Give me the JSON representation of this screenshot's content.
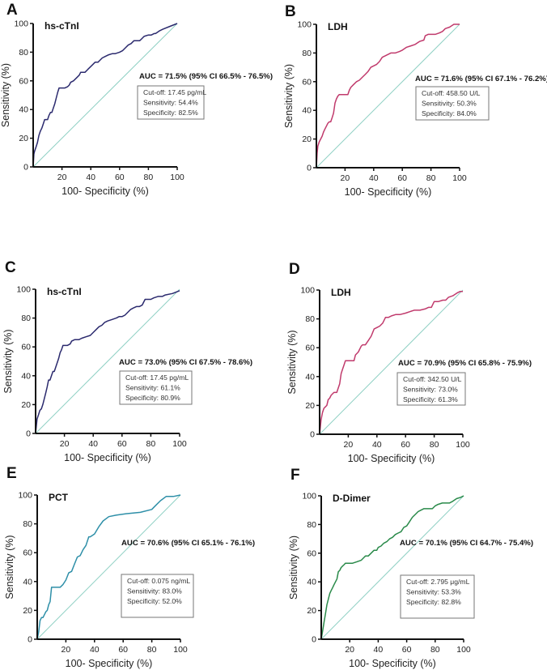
{
  "chart_data": [
    {
      "type": "line",
      "panel": "A",
      "title": "hs-cTnI",
      "xlabel": "100- Specificity (%)",
      "ylabel": "Sensitivity (%)",
      "xlim": [
        0,
        100
      ],
      "ylim": [
        0,
        100
      ],
      "xticks": [
        "20",
        "40",
        "60",
        "80",
        "100"
      ],
      "yticks": [
        "0",
        "20",
        "40",
        "60",
        "80",
        "100"
      ],
      "color": "#2b2a6e",
      "auc_label": "AUC = 71.5% (95% CI 66.5% - 76.5%)",
      "stats": [
        "Cut-off: 17.45 pg/mL",
        "Sensitivity: 54.4%",
        "Specificity: 82.5%"
      ],
      "reference_line": {
        "x": [
          0,
          100
        ],
        "y": [
          0,
          100
        ],
        "color": "#8fd0c4"
      },
      "series": [
        {
          "name": "ROC",
          "x": [
            0,
            0.5,
            1,
            2,
            3,
            4,
            5,
            6,
            7,
            8,
            9,
            10,
            11,
            12,
            13,
            14,
            15,
            16,
            17,
            18,
            19,
            20,
            22,
            24,
            25,
            26,
            28,
            30,
            32,
            33,
            35,
            36,
            38,
            40,
            41,
            43,
            45,
            46,
            48,
            50,
            52,
            55,
            57,
            60,
            62,
            64,
            66,
            68,
            70,
            72,
            74,
            75,
            77,
            80,
            82,
            84,
            85,
            88,
            90,
            95,
            100
          ],
          "y": [
            0,
            9,
            11,
            14,
            17,
            22,
            25,
            27,
            30,
            33,
            33,
            33,
            36,
            38,
            38,
            41,
            44,
            48,
            52,
            55,
            55,
            55,
            55,
            56,
            57,
            59,
            60,
            62,
            64,
            66,
            66,
            66,
            68,
            70,
            71,
            73,
            73,
            74,
            76,
            77,
            78,
            79,
            79,
            80,
            81,
            83,
            85,
            86,
            88,
            88,
            88,
            89,
            91,
            92,
            92,
            93,
            93,
            95,
            96,
            98,
            100
          ]
        }
      ]
    },
    {
      "type": "line",
      "panel": "B",
      "title": "LDH",
      "xlabel": "100- Specificity (%)",
      "ylabel": "Sensitivity (%)",
      "xlim": [
        0,
        100
      ],
      "ylim": [
        0,
        100
      ],
      "xticks": [
        "20",
        "40",
        "60",
        "80",
        "100"
      ],
      "yticks": [
        "0",
        "20",
        "40",
        "60",
        "80",
        "100"
      ],
      "color": "#c03a6c",
      "auc_label": "AUC = 71.6% (95% CI 67.1% - 76.2%)",
      "stats": [
        "Cut-off: 458.50 U/L",
        "Sensitivity: 50.3%",
        "Specificity: 84.0%"
      ],
      "reference_line": {
        "x": [
          0,
          100
        ],
        "y": [
          0,
          100
        ],
        "color": "#8fd0c4"
      },
      "series": [
        {
          "name": "ROC",
          "x": [
            0,
            0.5,
            1,
            2,
            3,
            4,
            5,
            6,
            7,
            8,
            9,
            10,
            11,
            12,
            13,
            14,
            15,
            16,
            18,
            20,
            22,
            23,
            24,
            26,
            28,
            30,
            32,
            34,
            36,
            38,
            40,
            42,
            44,
            46,
            48,
            50,
            52,
            55,
            58,
            60,
            63,
            66,
            69,
            72,
            75,
            76,
            78,
            80,
            83,
            86,
            88,
            90,
            93,
            96,
            98,
            100
          ],
          "y": [
            0,
            10,
            15,
            18,
            20,
            22,
            25,
            27,
            29,
            31,
            32,
            32,
            35,
            38,
            45,
            48,
            50,
            51,
            51,
            51,
            51,
            54,
            56,
            58,
            60,
            61,
            63,
            65,
            67,
            70,
            71,
            72,
            74,
            77,
            78,
            79,
            80,
            80,
            81,
            82,
            84,
            85,
            86,
            88,
            89,
            92,
            93,
            93,
            93,
            94,
            95,
            97,
            98,
            100,
            100,
            100
          ]
        }
      ]
    },
    {
      "type": "line",
      "panel": "C",
      "title": "hs-cTnI",
      "xlabel": "100- Specificity (%)",
      "ylabel": "Sensitivity (%)",
      "xlim": [
        0,
        100
      ],
      "ylim": [
        0,
        100
      ],
      "xticks": [
        "20",
        "40",
        "60",
        "80",
        "100"
      ],
      "yticks": [
        "0",
        "20",
        "40",
        "60",
        "80",
        "100"
      ],
      "color": "#2b2a6e",
      "auc_label": "AUC = 73.0% (95% CI 67.5% - 78.6%)",
      "stats": [
        "Cut-off: 17.45 pg/mL",
        "Sensitivity: 61.1%",
        "Specificity: 80.9%"
      ],
      "reference_line": {
        "x": [
          0,
          100
        ],
        "y": [
          0,
          100
        ],
        "color": "#8fd0c4"
      },
      "series": [
        {
          "name": "ROC",
          "x": [
            0,
            0.5,
            1,
            2,
            3,
            4,
            5,
            6,
            7,
            8,
            9,
            10,
            11,
            12,
            13,
            14,
            15,
            16,
            17,
            18,
            19,
            20,
            22,
            24,
            25,
            27,
            30,
            32,
            35,
            38,
            40,
            42,
            44,
            46,
            48,
            50,
            53,
            56,
            58,
            60,
            62,
            64,
            66,
            68,
            70,
            72,
            74,
            76,
            78,
            80,
            82,
            85,
            88,
            90,
            95,
            100
          ],
          "y": [
            0,
            5,
            10,
            13,
            16,
            17,
            20,
            24,
            28,
            32,
            37,
            37,
            40,
            43,
            43,
            46,
            49,
            52,
            56,
            58,
            61,
            61,
            61,
            62,
            64,
            65,
            65,
            66,
            67,
            68,
            70,
            72,
            74,
            75,
            77,
            78,
            79,
            80,
            81,
            81,
            82,
            84,
            86,
            87,
            88,
            88,
            89,
            93,
            93,
            93,
            94,
            95,
            95,
            96,
            97,
            99
          ]
        }
      ]
    },
    {
      "type": "line",
      "panel": "D",
      "title": "LDH",
      "xlabel": "100- Specificity (%)",
      "ylabel": "Sensitivity (%)",
      "xlim": [
        0,
        100
      ],
      "ylim": [
        0,
        100
      ],
      "xticks": [
        "20",
        "40",
        "60",
        "80",
        "100"
      ],
      "yticks": [
        "0",
        "20",
        "40",
        "60",
        "80",
        "100"
      ],
      "color": "#c03a6c",
      "auc_label": "AUC = 70.9% (95% CI 65.8% - 75.9%)",
      "stats": [
        "Cut-off: 342.50 U/L",
        "Sensitivity: 73.0%",
        "Specificity: 61.3%"
      ],
      "reference_line": {
        "x": [
          0,
          100
        ],
        "y": [
          0,
          100
        ],
        "color": "#8fd0c4"
      },
      "series": [
        {
          "name": "ROC",
          "x": [
            0,
            0.5,
            1,
            2,
            3,
            4,
            5,
            6,
            7,
            8,
            10,
            12,
            13,
            14,
            15,
            16,
            17,
            18,
            20,
            22,
            24,
            25,
            27,
            29,
            30,
            32,
            34,
            36,
            38,
            40,
            42,
            44,
            46,
            48,
            50,
            53,
            56,
            60,
            63,
            66,
            70,
            74,
            76,
            78,
            80,
            83,
            86,
            88,
            90,
            93,
            96,
            98,
            100
          ],
          "y": [
            0,
            5,
            10,
            15,
            18,
            19,
            20,
            24,
            25,
            27,
            29,
            29,
            32,
            35,
            42,
            45,
            48,
            51,
            51,
            51,
            51,
            55,
            57,
            61,
            62,
            62,
            65,
            68,
            73,
            74,
            75,
            77,
            81,
            81,
            82,
            83,
            83,
            84,
            85,
            86,
            86,
            87,
            88,
            88,
            92,
            92,
            93,
            93,
            95,
            96,
            98,
            99,
            99
          ]
        }
      ]
    },
    {
      "type": "line",
      "panel": "E",
      "title": "PCT",
      "xlabel": "100- Specificity (%)",
      "ylabel": "Sensitivity (%)",
      "xlim": [
        0,
        100
      ],
      "ylim": [
        0,
        100
      ],
      "xticks": [
        "20",
        "40",
        "60",
        "80",
        "100"
      ],
      "yticks": [
        "0",
        "20",
        "40",
        "60",
        "80",
        "100"
      ],
      "color": "#2e8fa8",
      "auc_label": "AUC = 70.6% (95% CI 65.1% - 76.1%)",
      "stats": [
        "Cut-off:  0.075 ng/mL",
        "Sensitivity: 83.0%",
        "Specificity: 52.0%"
      ],
      "reference_line": {
        "x": [
          0,
          100
        ],
        "y": [
          0,
          100
        ],
        "color": "#8fd0c4"
      },
      "series": [
        {
          "name": "ROC",
          "x": [
            0,
            1,
            2,
            3,
            4,
            5,
            6,
            7,
            8,
            9,
            10,
            11,
            12,
            14,
            16,
            18,
            20,
            22,
            24,
            26,
            28,
            30,
            32,
            34,
            36,
            37,
            40,
            43,
            46,
            50,
            55,
            62,
            72,
            80,
            82,
            86,
            90,
            95,
            100
          ],
          "y": [
            0,
            5,
            13,
            15,
            15,
            17,
            19,
            20,
            24,
            26,
            36,
            36,
            36,
            36,
            36,
            38,
            41,
            46,
            47,
            52,
            57,
            58,
            62,
            65,
            71,
            71,
            73,
            78,
            82,
            85,
            86,
            87,
            88,
            90,
            92,
            96,
            99,
            99,
            100
          ]
        }
      ]
    },
    {
      "type": "line",
      "panel": "F",
      "title": "D-Dimer",
      "xlabel": "100- Specificity (%)",
      "ylabel": "Sensitivity (%)",
      "xlim": [
        0,
        100
      ],
      "ylim": [
        0,
        100
      ],
      "xticks": [
        "20",
        "40",
        "60",
        "80",
        "100"
      ],
      "yticks": [
        "0",
        "20",
        "40",
        "60",
        "80",
        "100"
      ],
      "color": "#2a8a4a",
      "auc_label": "AUC = 70.1% (95% CI 64.7% - 75.4%)",
      "stats": [
        "Cut-off:  2.795 μg/mL",
        "Sensitivity: 53.3%",
        "Specificity: 82.8%"
      ],
      "reference_line": {
        "x": [
          0,
          100
        ],
        "y": [
          0,
          100
        ],
        "color": "#8fd0c4"
      },
      "series": [
        {
          "name": "ROC",
          "x": [
            0,
            1,
            2,
            3,
            4,
            5,
            6,
            7,
            8,
            9,
            10,
            11,
            12,
            13,
            14,
            15,
            16,
            17,
            18,
            20,
            22,
            25,
            28,
            30,
            31,
            33,
            35,
            37,
            39,
            40,
            42,
            44,
            46,
            48,
            50,
            52,
            54,
            56,
            58,
            60,
            62,
            64,
            66,
            68,
            70,
            72,
            75,
            78,
            80,
            82,
            85,
            88,
            90,
            92,
            95,
            98,
            100
          ],
          "y": [
            0,
            6,
            12,
            18,
            24,
            28,
            32,
            34,
            36,
            38,
            40,
            42,
            47,
            48,
            50,
            51,
            52,
            53,
            53,
            53,
            53,
            54,
            55,
            57,
            58,
            58,
            60,
            62,
            62,
            64,
            65,
            67,
            68,
            70,
            71,
            73,
            74,
            75,
            78,
            79,
            82,
            85,
            87,
            89,
            90,
            91,
            91,
            91,
            93,
            94,
            95,
            95,
            95,
            96,
            98,
            99,
            100
          ]
        }
      ]
    }
  ]
}
